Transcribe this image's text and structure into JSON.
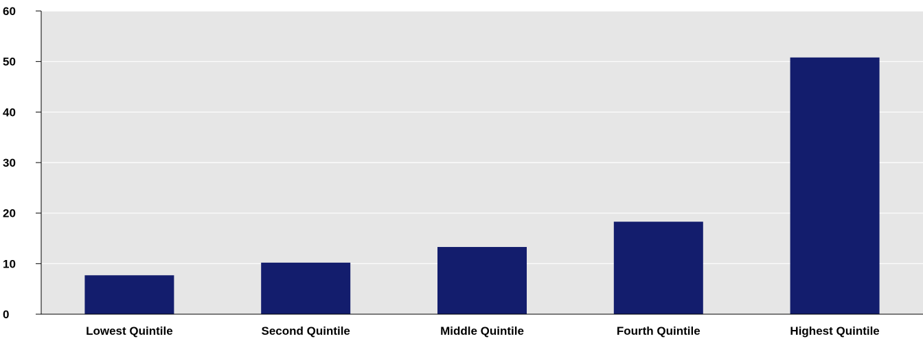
{
  "chart_data": {
    "type": "bar",
    "title": "",
    "xlabel": "",
    "ylabel": "",
    "categories": [
      "Lowest Quintile",
      "Second Quintile",
      "Middle Quintile",
      "Fourth Quintile",
      "Highest Quintile"
    ],
    "values": [
      7.7,
      10.2,
      13.3,
      18.3,
      50.8
    ],
    "ylim": [
      0,
      60
    ],
    "yticks": [
      0,
      10,
      20,
      30,
      40,
      50,
      60
    ],
    "grid": true,
    "colors": {
      "bar": "#131D6D",
      "plot_background": "#E6E6E6",
      "gridline": "#FFFFFF",
      "axis": "#000000"
    }
  }
}
